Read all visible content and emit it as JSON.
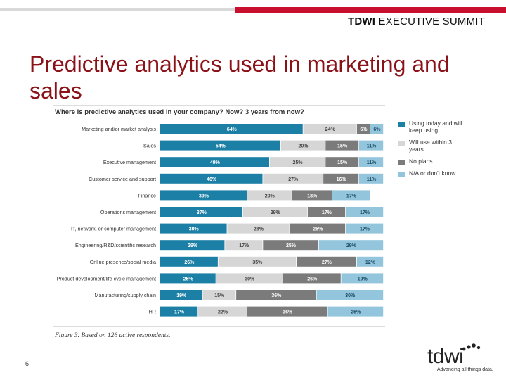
{
  "header": {
    "brand_bold": "TDWI",
    "brand_rest": "EXECUTIVE SUMMIT"
  },
  "slide": {
    "title": "Predictive analytics used in marketing and sales",
    "page_number": "6"
  },
  "logo": {
    "word": "tdwi",
    "tagline": "Advancing all things data."
  },
  "colors": {
    "accent_red": "#c8102e",
    "title_red": "#8a1218"
  },
  "chart_data": {
    "type": "bar",
    "orientation": "horizontal",
    "stacked": true,
    "title": "Where is predictive analytics used in your company? Now? 3 years from now?",
    "caption": "Figure 3. Based on 126 active respondents.",
    "categories": [
      "Marketing and/or market analysis",
      "Sales",
      "Executive management",
      "Customer service and support",
      "Finance",
      "Operations management",
      "IT, network, or computer management",
      "Engineering/R&D/scientific research",
      "Online presence/social media",
      "Product development/life cycle management",
      "Manufacturing/supply chain",
      "HR"
    ],
    "series": [
      {
        "name": "Using today and will keep using",
        "color": "#1b7fa6",
        "label_color": "#ffffff",
        "values": [
          64,
          54,
          49,
          46,
          39,
          37,
          30,
          29,
          26,
          25,
          19,
          17
        ]
      },
      {
        "name": "Will use within 3 years",
        "color": "#d6d6d6",
        "label_color": "#444444",
        "values": [
          24,
          20,
          25,
          27,
          20,
          29,
          28,
          17,
          35,
          30,
          15,
          22
        ]
      },
      {
        "name": "No plans",
        "color": "#7b7b7b",
        "label_color": "#ffffff",
        "values": [
          6,
          15,
          15,
          16,
          18,
          17,
          25,
          25,
          27,
          26,
          36,
          36
        ]
      },
      {
        "name": "N/A or don't know",
        "color": "#93c5dd",
        "label_color": "#1a4c66",
        "values": [
          6,
          11,
          11,
          11,
          17,
          17,
          17,
          29,
          12,
          19,
          30,
          25
        ]
      }
    ],
    "xlim": [
      0,
      100
    ]
  }
}
